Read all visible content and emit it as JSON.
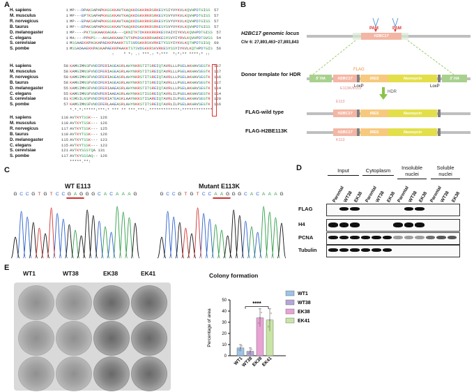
{
  "panels": {
    "a": "A",
    "b": "B",
    "c": "C",
    "d": "D",
    "e": "E"
  },
  "alignment": {
    "block1": {
      "species": [
        "H. sapiens",
        "M. musculus",
        "R. norvegicus",
        "B. taurus",
        "D. melanogaster",
        "C. elegans",
        "S. cerevisiae",
        "S. pombe"
      ],
      "starts": [
        "1",
        "1",
        "1",
        "1",
        "1",
        "1",
        "1",
        "1"
      ],
      "seqs": [
        "MP---DPAKSAPAPKKGSKKAVTKAQKKDGKKRKRSRKESYSIYVYKVLKQVHPDTGISS",
        "MP---EPTKSAPAPKKGSKKAVTKAQKKDGKKRKRSRKESYSVYVYKVLKQVHPDTGISS",
        "MP---EPAKSAPAPKKGSKKAVTKAQKKDGKKRKRSRKESYSVYVYKVLKQVHPDTGISS",
        "MP---EPAKSAPAPKKGSKKAVTKAQKKDGKKRKRSRKESYSVYVYKVLKQVHPDTGISS",
        "MP----PKTSGKAAKKAGKA---QKNITKTDKKKKRKRKESYAIYIYKVLKQVHPDTGISS",
        "MA----PPKPS---AKGAKKAAKTVTKPKDGKKRRHARKESYSVYIYRVLKQVHPDTGVSS",
        "MSSAAEKKPASKAPAEKKPAAKKTSTSVDGKKRSKVRKETYSSYIYKVLKQTHPDTGISQ",
        "MSSADAAEKKPASKAPAEKKPAAKKTSTSVDGKKRSKVRKESYSSYIYKVLKQTHPDTGIS"
      ],
      "ends": [
        "57",
        "57",
        "57",
        "57",
        "57",
        "54",
        "60",
        "56"
      ],
      "cons": "                  :    * *: .: ***.: *:***  *:*:** ****:* ::"
    },
    "block2": {
      "species": [
        "H. sapiens",
        "M. musculus",
        "R. norvegicus",
        "B. taurus",
        "D. melanogaster",
        "C. elegans",
        "S. cerevisiae",
        "S. pombe"
      ],
      "starts": [
        "58",
        "58",
        "58",
        "58",
        "55",
        "55",
        "61",
        "57"
      ],
      "seqs": [
        "KAMGIMNSFVNDIFERIAGEASRLAHYNKRSTITSREIQTAVRLLLPGELAKHAVSEGTK",
        "KAMGIMNSFVNDIFERIAGEASRLAHYNKRSTITSREIQTAVRLLLPGELAKHAVSEGTK",
        "KAMGIMNSFVNDIFERIAGEASRLAHYNKRSTITSREIQTAVRLLLPGELAKHAVSEGTK",
        "KAMGIMNSFVNDIFERIAGEASRLAHYNKRSTITSREIQTAVRLLLPGELAKHAVSEGTK",
        "KAMSIMNSFVNDIFERIAAEASRLAHYNKRSTITSREIQTAVRLLLPGELAKHAVSEGTK",
        "KAMSIMNSFVNDVFERIAAEASRLAHYNKKSTISSREIQTAVRLILPGELAKHAVSEGTK",
        "KSMSILNSFVNDIFERIATEASKLAAYNKKSTISAREIQTAVRLILPGELAKHAVSEGTR",
        "KAMSIMNSFVNDIFERLAAEASRLAHYNKKSTITSREIQTAVRLILPGELAKHAVSEGTK"
      ],
      "ends": [
        "117",
        "117",
        "116",
        "117",
        "114",
        "114",
        "120",
        "116"
      ],
      "cons": "*.*.*:*****:***:* *** ** ***.***:.*************:*************"
    },
    "block3": {
      "species": [
        "H. sapiens",
        "M. musculus",
        "R. norvegicus",
        "B. taurus",
        "D. melanogaster",
        "C. elegans",
        "S. cerevisiae",
        "S. pombe"
      ],
      "starts": [
        "118",
        "118",
        "117",
        "118",
        "115",
        "115",
        "121",
        "117"
      ],
      "seqs": [
        "AVTKYTSSK---",
        "AVTKYTSSK---",
        "AVTKYTSSK---",
        "AVTKYTSSK---",
        "AVTKYTSSK---",
        "AVTKYTSSK---",
        "AVTKYSSSTQA",
        "AVTKYSSSAQ--"
      ],
      "ends": [
        "126",
        "126",
        "125",
        "126",
        "123",
        "123",
        "131",
        "126"
      ],
      "cons": "*****.**:"
    }
  },
  "schematic": {
    "locus_title": "H2BC17 genomic locus",
    "locus_coords": "Chr 6: 27,893,463~27,893,843",
    "gene": "H2BC17",
    "pam": "PAM",
    "donor_label": "Donor template for HDR",
    "flag": "FLAG",
    "five_ha": "5' HA",
    "three_ha": "3' HA",
    "ires": "IRES",
    "neo": "Neomycin",
    "loxp": "LoxP",
    "hdr": "HDR",
    "e113k_mark": "E113K/K113",
    "flag_wt": "FLAG-wild type",
    "flag_mut": "FLAG-H2BE113K",
    "e113": "E113",
    "k113": "K113"
  },
  "chromatogram": {
    "wt_title": "WT E113",
    "mut_title": "Mutant E113K",
    "wt_seq": "GCCGTGTCCGAGGGCACAAAG",
    "mut_seq": "GCCGTGTCCAAGGGCACAAAG"
  },
  "western": {
    "groups": [
      "Input",
      "Cytoplasm",
      "Insoluble nuclei",
      "Soluble nuclei"
    ],
    "lanes": [
      "Parental",
      "WT38",
      "EK38",
      "Parental",
      "WT38",
      "EK38",
      "Parental",
      "WT38",
      "EK38",
      "Parental",
      "WT38",
      "EK38"
    ],
    "rows": [
      "FLAG",
      "H4",
      "PCNA",
      "Tubulin"
    ]
  },
  "plate": {
    "labels": [
      "WT1",
      "WT38",
      "EK38",
      "EK41"
    ]
  },
  "chart_data": {
    "type": "bar",
    "title": "Colony formation",
    "ylabel": "Percentage of area",
    "categories": [
      "WT1",
      "WT38",
      "EK38",
      "EK41"
    ],
    "values": [
      7,
      4,
      34,
      32
    ],
    "errors": [
      3,
      3,
      8,
      10
    ],
    "ylim": [
      0,
      50
    ],
    "yticks": [
      0,
      10,
      20,
      30,
      40,
      50
    ],
    "colors": [
      "#9dc3e6",
      "#b4a7d6",
      "#e8a3d4",
      "#c9e5a5"
    ],
    "significance": "****",
    "legend_position": "right"
  }
}
